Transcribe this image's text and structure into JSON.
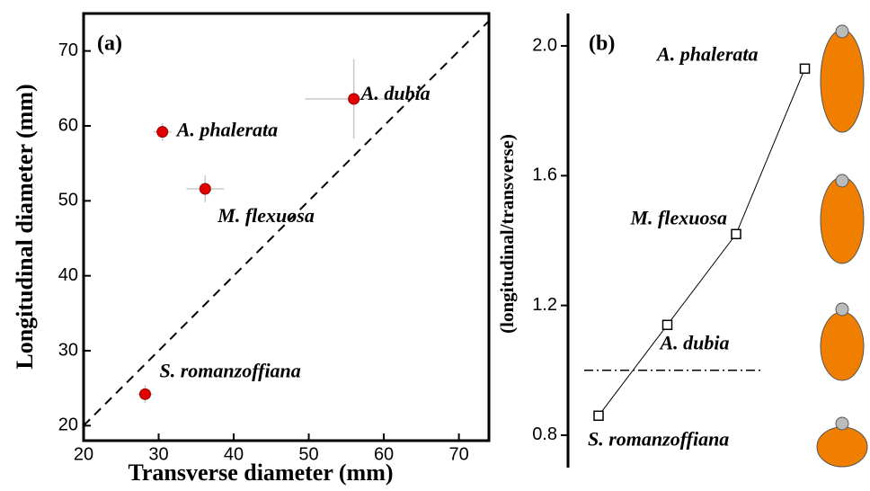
{
  "chart_data": [
    {
      "type": "scatter",
      "title": "(a)",
      "x_label": "Transverse diameter (mm)",
      "y_label": "Longitudinal diameter (mm)",
      "labels": [
        "A. phalerata",
        "M. flexuosa",
        "A. dubia",
        "S. romanzoffiana"
      ],
      "x": [
        30.5,
        36.2,
        56,
        28.2
      ],
      "values": [
        59.2,
        51.6,
        63.6,
        24.2
      ],
      "xerr": [
        1.2,
        2.5,
        6.5,
        1.0
      ],
      "yerr": [
        1.2,
        1.8,
        5.3,
        1.2
      ],
      "color": "#e00000",
      "errorbar_color": "#c8c8c8",
      "xlim": [
        20,
        74
      ],
      "ylim": [
        18,
        75
      ],
      "xticks": [
        20,
        30,
        40,
        50,
        60,
        70
      ],
      "yticks": [
        20,
        30,
        40,
        50,
        60,
        70
      ],
      "diagonal": true
    },
    {
      "type": "line",
      "title": "(b)",
      "y_label": "(longitudinal/transverse)",
      "categories": [
        "S. romanzoffiana",
        "A. dubia",
        "M. flexuosa",
        "A. phalerata"
      ],
      "values": [
        0.86,
        1.14,
        1.42,
        1.93
      ],
      "color": "#000000",
      "ylim": [
        0.7,
        2.1
      ],
      "yticks": [
        0.8,
        {
          "value": 1.2,
          "label": "1.2"
        },
        {
          "value": 1.6,
          "label": "1.6"
        },
        {
          "value": 2.0,
          "label": "2.0"
        }
      ],
      "reference_y": 1.0
    }
  ]
}
